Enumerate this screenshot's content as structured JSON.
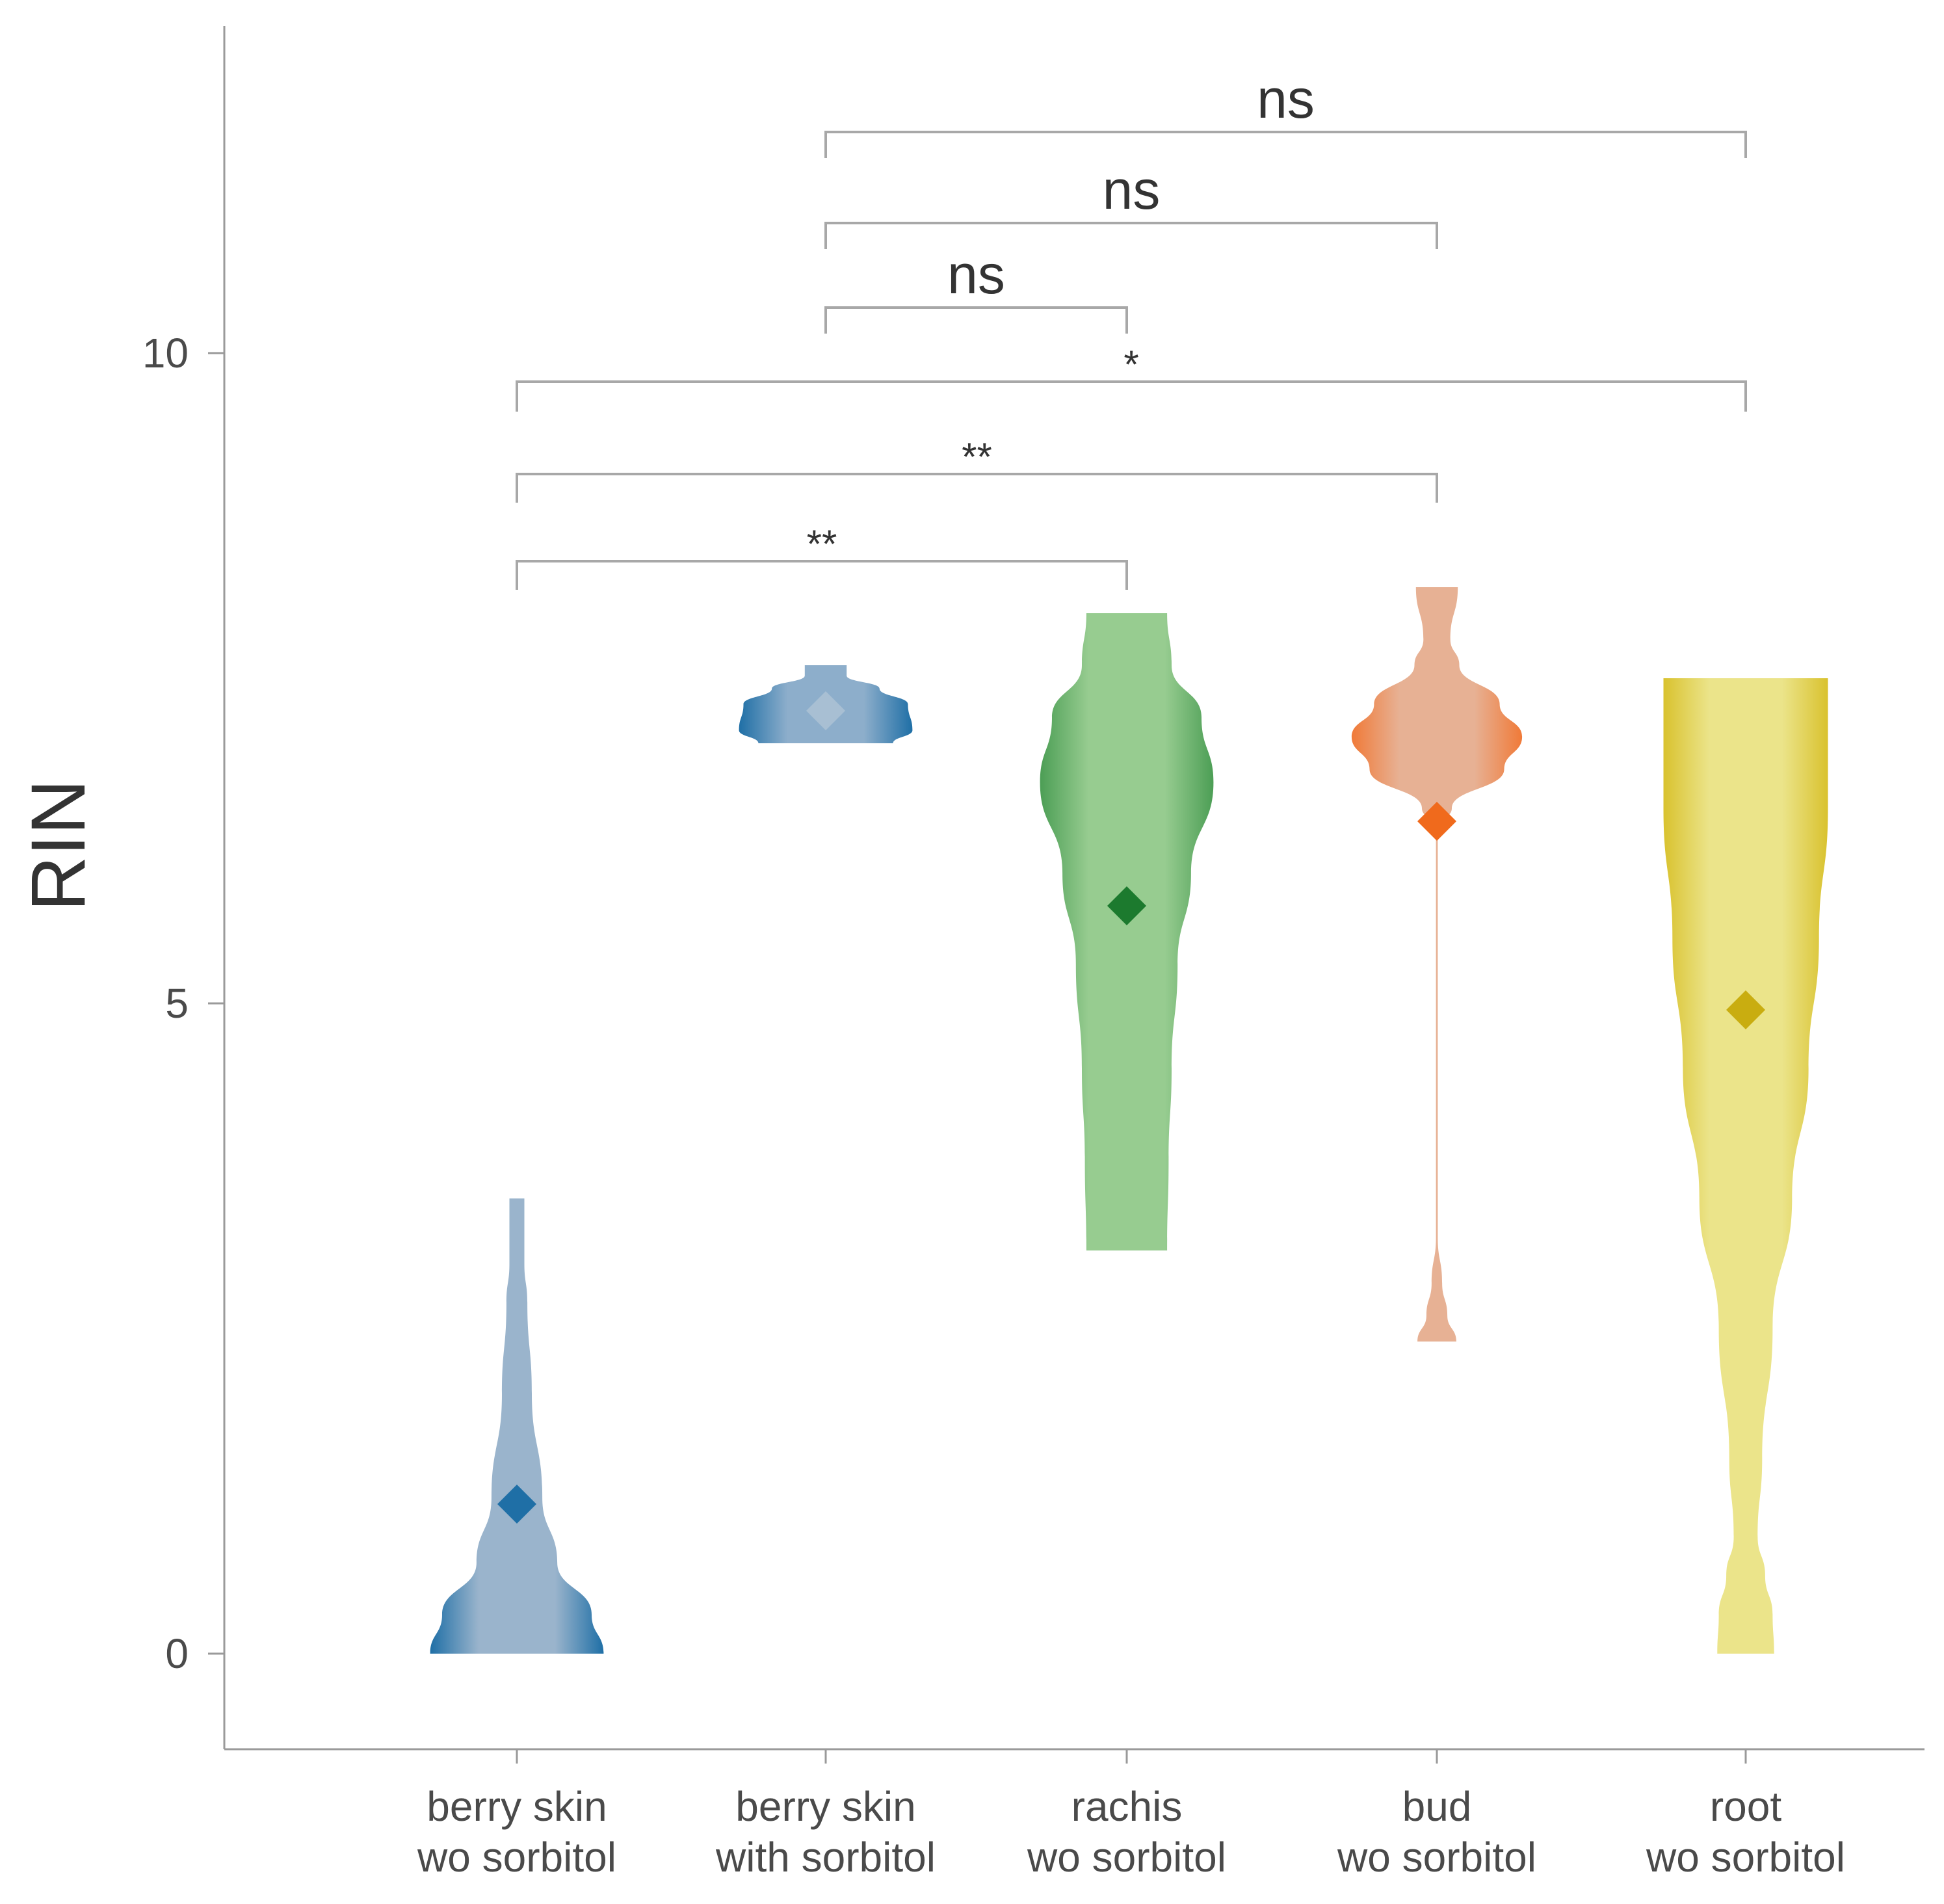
{
  "chart_data": {
    "type": "violin",
    "title": "",
    "xlabel": "",
    "ylabel": "RIN",
    "ylim": [
      -0.7,
      12.5
    ],
    "yticks": [
      0,
      5,
      10
    ],
    "grid": false,
    "categories": [
      {
        "line1": "berry skin",
        "line2": "wo sorbitol"
      },
      {
        "line1": "berry skin",
        "line2": "with sorbitol"
      },
      {
        "line1": "rachis",
        "line2": "wo sorbitol"
      },
      {
        "line1": "bud",
        "line2": "wo sorbitol"
      },
      {
        "line1": "root",
        "line2": "wo sorbitol"
      }
    ],
    "groups": [
      {
        "name": "berry skin wo sorbitol",
        "color": "#1f6fa6",
        "fill": "#9ab4cc",
        "marker_color": "#1f6fa6",
        "mean": 1.15,
        "range": [
          0,
          3.5
        ],
        "profile": [
          [
            0,
            0.58
          ],
          [
            0.3,
            0.5
          ],
          [
            0.7,
            0.27
          ],
          [
            1.2,
            0.17
          ],
          [
            2.0,
            0.1
          ],
          [
            2.7,
            0.07
          ],
          [
            3.0,
            0.05
          ],
          [
            3.5,
            0.05
          ]
        ]
      },
      {
        "name": "berry skin with sorbitol",
        "color": "#1f6fa6",
        "fill": "#8daecb",
        "marker_color": "#a8bfd3",
        "mean": 7.25,
        "range": [
          7.0,
          7.6
        ],
        "profile": [
          [
            7.0,
            0.45
          ],
          [
            7.1,
            0.58
          ],
          [
            7.3,
            0.55
          ],
          [
            7.42,
            0.36
          ],
          [
            7.52,
            0.14
          ],
          [
            7.6,
            0.14
          ]
        ]
      },
      {
        "name": "rachis wo sorbitol",
        "color": "#4c9e55",
        "fill": "#97cc90",
        "marker_color": "#1c7a2e",
        "mean": 5.75,
        "range": [
          3.1,
          8.0
        ],
        "profile": [
          [
            3.1,
            0.27
          ],
          [
            3.8,
            0.28
          ],
          [
            4.5,
            0.3
          ],
          [
            5.3,
            0.34
          ],
          [
            6.0,
            0.43
          ],
          [
            6.7,
            0.58
          ],
          [
            7.2,
            0.5
          ],
          [
            7.6,
            0.3
          ],
          [
            8.0,
            0.27
          ]
        ]
      },
      {
        "name": "bud wo sorbitol",
        "color": "#f07a38",
        "fill": "#e7b194",
        "marker_color": "#f06a1c",
        "mean": 6.4,
        "range": [
          2.4,
          8.2
        ],
        "profile": [
          [
            2.4,
            0.13
          ],
          [
            2.6,
            0.07
          ],
          [
            2.85,
            0.035
          ],
          [
            3.2,
            0.006
          ],
          [
            5.0,
            0.006
          ],
          [
            6.35,
            0.006
          ],
          [
            6.5,
            0.1
          ],
          [
            6.8,
            0.45
          ],
          [
            7.05,
            0.57
          ],
          [
            7.3,
            0.42
          ],
          [
            7.6,
            0.15
          ],
          [
            7.8,
            0.09
          ],
          [
            8.2,
            0.14
          ]
        ]
      },
      {
        "name": "root wo sorbitol",
        "color": "#d9c22e",
        "fill": "#ebe48a",
        "marker_color": "#c9ad10",
        "mean": 4.95,
        "range": [
          0,
          7.5
        ],
        "profile": [
          [
            0,
            0.19
          ],
          [
            0.3,
            0.18
          ],
          [
            0.6,
            0.13
          ],
          [
            0.9,
            0.08
          ],
          [
            1.5,
            0.11
          ],
          [
            2.5,
            0.18
          ],
          [
            3.5,
            0.31
          ],
          [
            4.5,
            0.42
          ],
          [
            5.5,
            0.49
          ],
          [
            6.5,
            0.55
          ],
          [
            7.5,
            0.55
          ]
        ]
      }
    ],
    "comparisons": [
      {
        "from": 1,
        "to": 4,
        "label": "ns",
        "y": 11.7,
        "end_y": 11.5
      },
      {
        "from": 1,
        "to": 3,
        "label": "ns",
        "y": 11.0,
        "end_y": 10.8
      },
      {
        "from": 1,
        "to": 2,
        "label": "ns",
        "y": 10.35,
        "end_y": 10.15
      },
      {
        "from": 0,
        "to": 4,
        "label": "*",
        "y": 9.78,
        "end_y": 9.55
      },
      {
        "from": 0,
        "to": 3,
        "label": "**",
        "y": 9.07,
        "end_y": 8.85
      },
      {
        "from": 0,
        "to": 2,
        "label": "**",
        "y": 8.4,
        "end_y": 8.18
      }
    ]
  }
}
